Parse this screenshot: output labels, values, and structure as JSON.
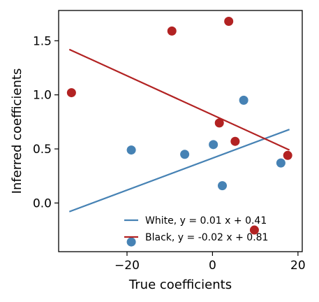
{
  "chart_data": {
    "type": "scatter",
    "xlabel": "True coefficients",
    "ylabel": "Inferred coefficients",
    "xlim": [
      -36,
      21
    ],
    "ylim": [
      -0.45,
      1.78
    ],
    "xticks": [
      -20,
      0,
      20
    ],
    "yticks": [
      0.0,
      0.5,
      1.0,
      1.5
    ],
    "xtick_labels": [
      "−20",
      "0",
      "20"
    ],
    "ytick_labels": [
      "0.0",
      "0.5",
      "1.0",
      "1.5"
    ],
    "grid": false,
    "legend_position": "lower-right",
    "series": [
      {
        "name": "White",
        "color": "#4682b4",
        "x": [
          -19.0,
          -19.0,
          -6.5,
          0.2,
          2.3,
          7.3,
          16.0
        ],
        "y": [
          0.49,
          -0.36,
          0.45,
          0.54,
          0.16,
          0.95,
          0.37
        ],
        "fit": {
          "label": "White, y = 0.01 x + 0.41",
          "x": [
            -33.5,
            18.0
          ],
          "y": [
            -0.08,
            0.68
          ]
        }
      },
      {
        "name": "Black",
        "color": "#b22222",
        "x": [
          -33.0,
          -9.5,
          1.6,
          3.8,
          5.3,
          9.8,
          17.6
        ],
        "y": [
          1.02,
          1.59,
          0.74,
          1.68,
          0.57,
          -0.25,
          0.44
        ],
        "fit": {
          "label": "Black, y = -0.02 x + 0.81",
          "x": [
            -33.5,
            18.0
          ],
          "y": [
            1.42,
            0.49
          ]
        }
      }
    ]
  }
}
